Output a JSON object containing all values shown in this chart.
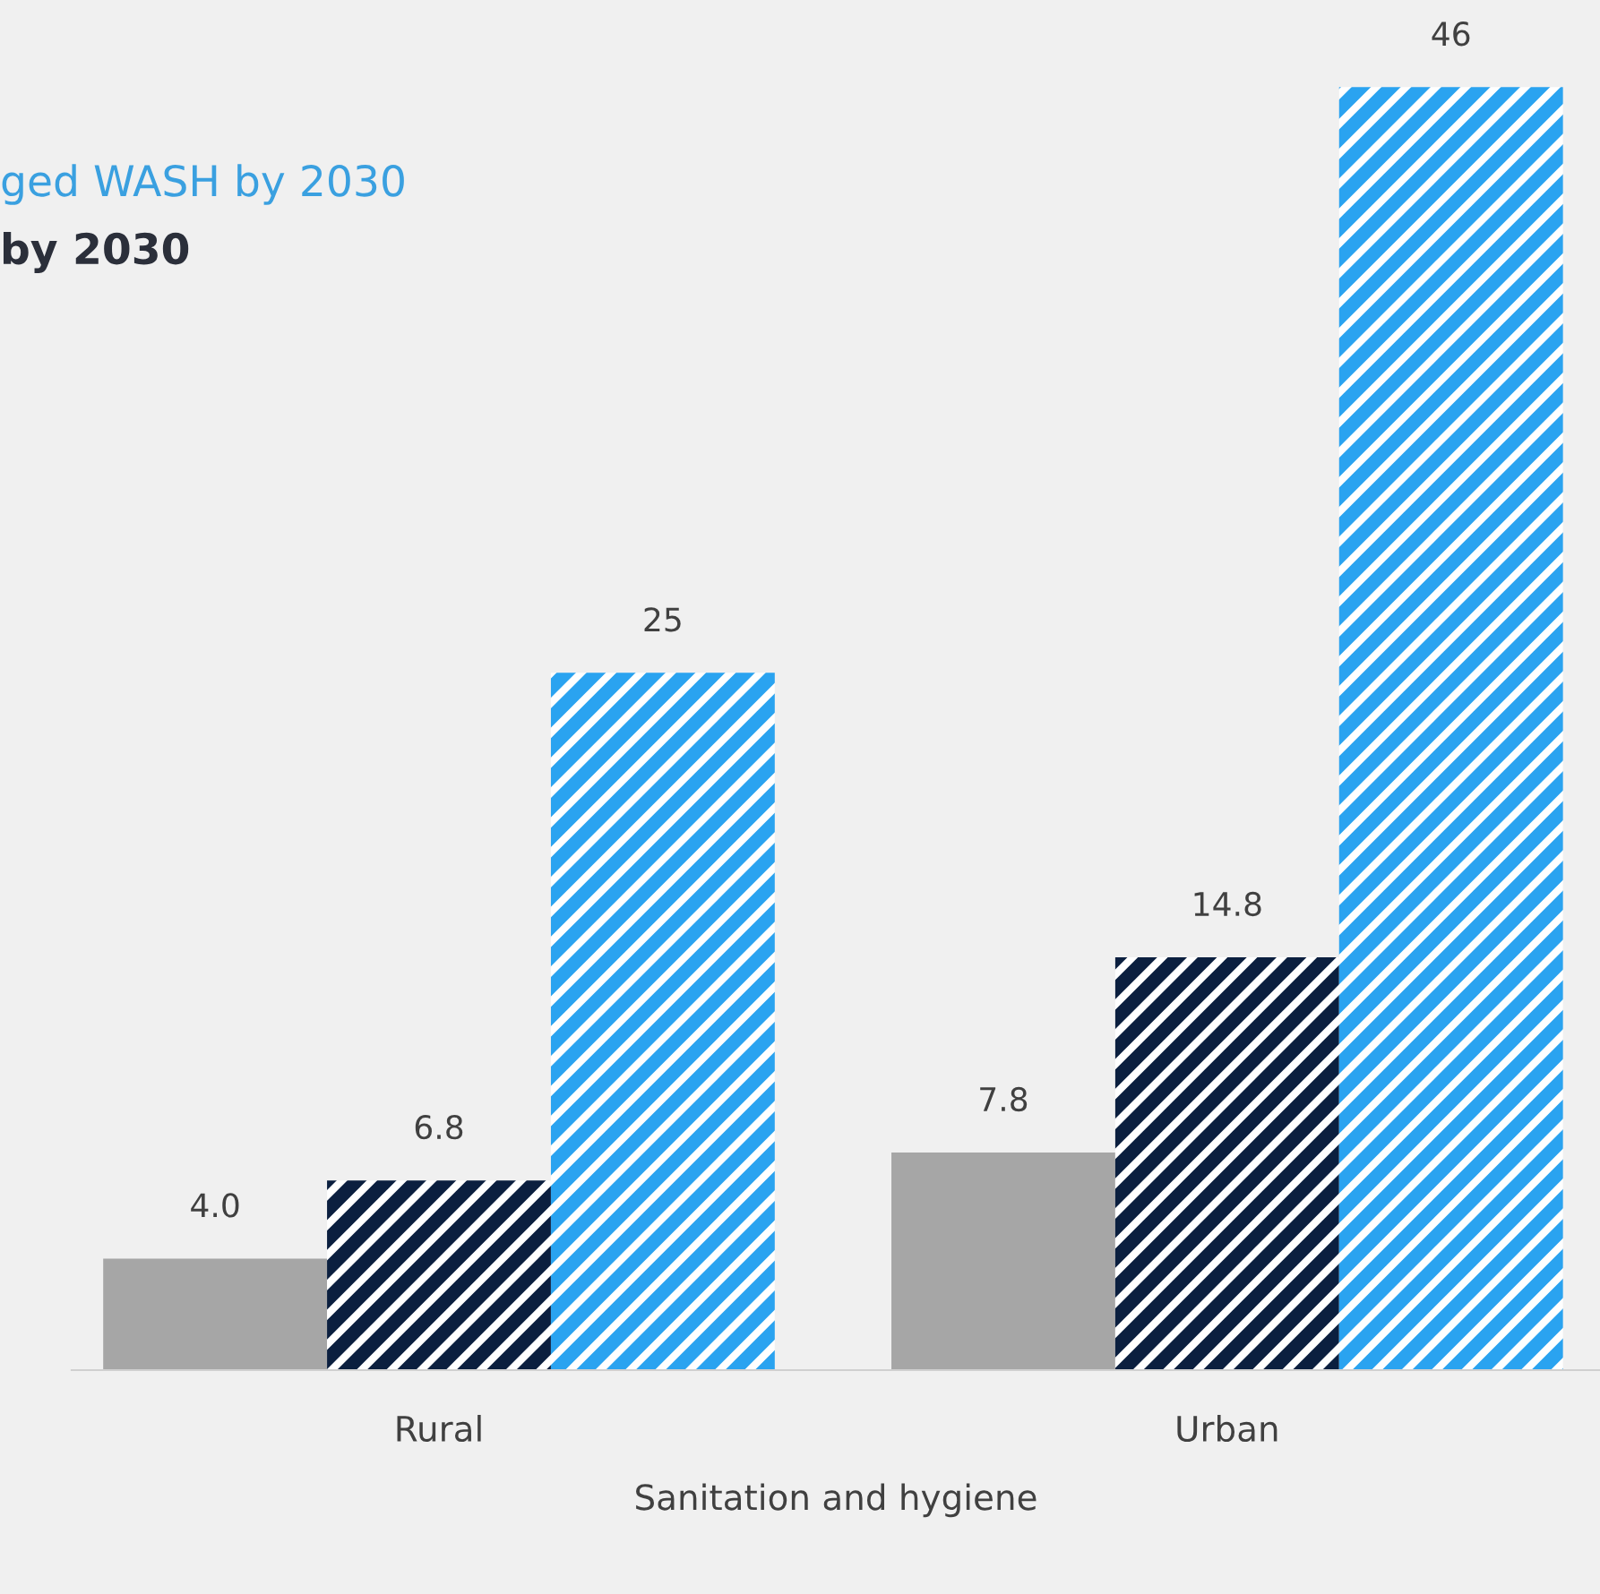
{
  "chart_data": {
    "type": "bar",
    "categories": [
      "Rural",
      "Urban"
    ],
    "series": [
      {
        "color": "#a6a6a6",
        "values": [
          4.0,
          7.8
        ],
        "value_labels": [
          "4.0",
          "7.8"
        ]
      },
      {
        "color": "#0b1f3f",
        "values": [
          6.8,
          14.8
        ],
        "value_labels": [
          "6.8",
          "14.8"
        ]
      },
      {
        "color": "#2aa3f0",
        "values": [
          25,
          46
        ],
        "value_labels": [
          "25",
          "46"
        ]
      }
    ],
    "xlabel": "Sanitation and hygiene",
    "annotations": [
      "ged WASH by 2030",
      "by 2030"
    ]
  }
}
